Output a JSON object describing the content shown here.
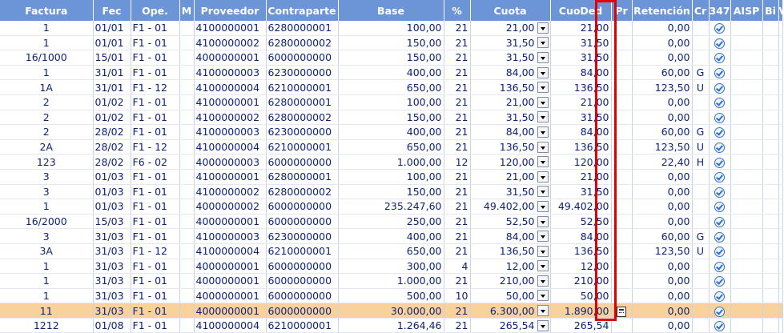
{
  "headers": [
    "Factura",
    "Fec",
    "Ope.",
    "M",
    "Proveedor",
    "Contraparte",
    "Base",
    "%",
    "Cuota",
    "CuoDed",
    "Pr",
    "Retención",
    "Cr",
    "347",
    "AISP",
    "Bi",
    "V"
  ],
  "rows": [
    {
      "factura": "1",
      "fec": "01/01",
      "ope": "F1 - 01",
      "prov": "4100000001",
      "contra": "6280000001",
      "base": "100,00",
      "pct": "21",
      "cuota": "21,00",
      "cuoded": "21,00",
      "ret": "0,00",
      "cr": ""
    },
    {
      "factura": "1",
      "fec": "01/01",
      "ope": "F1 - 01",
      "prov": "4100000002",
      "contra": "6280000002",
      "base": "150,00",
      "pct": "21",
      "cuota": "31,50",
      "cuoded": "31,50",
      "ret": "0,00",
      "cr": ""
    },
    {
      "factura": "16/1000",
      "fec": "15/01",
      "ope": "F1 - 01",
      "prov": "4000000001",
      "contra": "6000000000",
      "base": "150,00",
      "pct": "21",
      "cuota": "31,50",
      "cuoded": "31,50",
      "ret": "0,00",
      "cr": ""
    },
    {
      "factura": "1",
      "fec": "31/01",
      "ope": "F1 - 01",
      "prov": "4100000003",
      "contra": "6230000000",
      "base": "400,00",
      "pct": "21",
      "cuota": "84,00",
      "cuoded": "84,00",
      "ret": "60,00",
      "cr": "G"
    },
    {
      "factura": "1A",
      "fec": "31/01",
      "ope": "F1 - 12",
      "prov": "4100000004",
      "contra": "6210000001",
      "base": "650,00",
      "pct": "21",
      "cuota": "136,50",
      "cuoded": "136,50",
      "ret": "123,50",
      "cr": "U"
    },
    {
      "factura": "2",
      "fec": "01/02",
      "ope": "F1 - 01",
      "prov": "4100000001",
      "contra": "6280000001",
      "base": "100,00",
      "pct": "21",
      "cuota": "21,00",
      "cuoded": "21,00",
      "ret": "0,00",
      "cr": ""
    },
    {
      "factura": "2",
      "fec": "01/02",
      "ope": "F1 - 01",
      "prov": "4100000002",
      "contra": "6280000002",
      "base": "150,00",
      "pct": "21",
      "cuota": "31,50",
      "cuoded": "31,50",
      "ret": "0,00",
      "cr": ""
    },
    {
      "factura": "2",
      "fec": "28/02",
      "ope": "F1 - 01",
      "prov": "4100000003",
      "contra": "6230000000",
      "base": "400,00",
      "pct": "21",
      "cuota": "84,00",
      "cuoded": "84,00",
      "ret": "60,00",
      "cr": "G"
    },
    {
      "factura": "2A",
      "fec": "28/02",
      "ope": "F1 - 12",
      "prov": "4100000004",
      "contra": "6210000001",
      "base": "650,00",
      "pct": "21",
      "cuota": "136,50",
      "cuoded": "136,50",
      "ret": "123,50",
      "cr": "U"
    },
    {
      "factura": "123",
      "fec": "28/02",
      "ope": "F6 - 02",
      "prov": "4000000003",
      "contra": "6000000000",
      "base": "1.000,00",
      "pct": "12",
      "cuota": "120,00",
      "cuoded": "120,00",
      "ret": "22,40",
      "cr": "H"
    },
    {
      "factura": "3",
      "fec": "01/03",
      "ope": "F1 - 01",
      "prov": "4100000001",
      "contra": "6280000001",
      "base": "100,00",
      "pct": "21",
      "cuota": "21,00",
      "cuoded": "21,00",
      "ret": "0,00",
      "cr": ""
    },
    {
      "factura": "3",
      "fec": "01/03",
      "ope": "F1 - 01",
      "prov": "4100000002",
      "contra": "6280000002",
      "base": "150,00",
      "pct": "21",
      "cuota": "31,50",
      "cuoded": "31,50",
      "ret": "0,00",
      "cr": ""
    },
    {
      "factura": "1",
      "fec": "01/03",
      "ope": "F1 - 01",
      "prov": "4000000002",
      "contra": "6000000000",
      "base": "235.247,60",
      "pct": "21",
      "cuota": "49.402,00",
      "cuoded": "49.402,00",
      "ret": "0,00",
      "cr": ""
    },
    {
      "factura": "16/2000",
      "fec": "15/03",
      "ope": "F1 - 01",
      "prov": "4000000001",
      "contra": "6000000000",
      "base": "250,00",
      "pct": "21",
      "cuota": "52,50",
      "cuoded": "52,50",
      "ret": "0,00",
      "cr": ""
    },
    {
      "factura": "3",
      "fec": "31/03",
      "ope": "F1 - 01",
      "prov": "4100000003",
      "contra": "6230000000",
      "base": "400,00",
      "pct": "21",
      "cuota": "84,00",
      "cuoded": "84,00",
      "ret": "60,00",
      "cr": "G"
    },
    {
      "factura": "3A",
      "fec": "31/03",
      "ope": "F1 - 12",
      "prov": "4100000004",
      "contra": "6210000001",
      "base": "650,00",
      "pct": "21",
      "cuota": "136,50",
      "cuoded": "136,50",
      "ret": "123,50",
      "cr": "U"
    },
    {
      "factura": "1",
      "fec": "31/03",
      "ope": "F1 - 01",
      "prov": "4000000001",
      "contra": "6000000000",
      "base": "300,00",
      "pct": "4",
      "cuota": "12,00",
      "cuoded": "12,00",
      "ret": "0,00",
      "cr": ""
    },
    {
      "factura": "1",
      "fec": "31/03",
      "ope": "F1 - 01",
      "prov": "4000000001",
      "contra": "6000000000",
      "base": "1.000,00",
      "pct": "21",
      "cuota": "210,00",
      "cuoded": "210,00",
      "ret": "0,00",
      "cr": ""
    },
    {
      "factura": "1",
      "fec": "31/03",
      "ope": "F1 - 01",
      "prov": "4000000001",
      "contra": "6000000000",
      "base": "500,00",
      "pct": "10",
      "cuota": "50,00",
      "cuoded": "50,00",
      "ret": "0,00",
      "cr": ""
    },
    {
      "factura": "11",
      "fec": "31/03",
      "ope": "F1 - 01",
      "prov": "4000000001",
      "contra": "6000000000",
      "base": "30.000,00",
      "pct": "21",
      "cuota": "6.300,00",
      "cuoded": "1.890,00",
      "ret": "0,00",
      "cr": "",
      "highlight": true,
      "prorrata": true
    },
    {
      "factura": "1212",
      "fec": "01/08",
      "ope": "F1 - 01",
      "prov": "4100000004",
      "contra": "6210000001",
      "base": "1.264,46",
      "pct": "21",
      "cuota": "265,54",
      "cuoded": "265,54",
      "ret": "0,00",
      "cr": ""
    }
  ],
  "icons": {
    "check": "check-circle-icon",
    "dropdown": "chevron-down-icon",
    "prorrata": "calculator-icon"
  },
  "colors": {
    "header_bg": "#6b95d6",
    "highlight_row": "#f8d29a",
    "frame": "#e00000",
    "text": "#0a1f7a"
  }
}
